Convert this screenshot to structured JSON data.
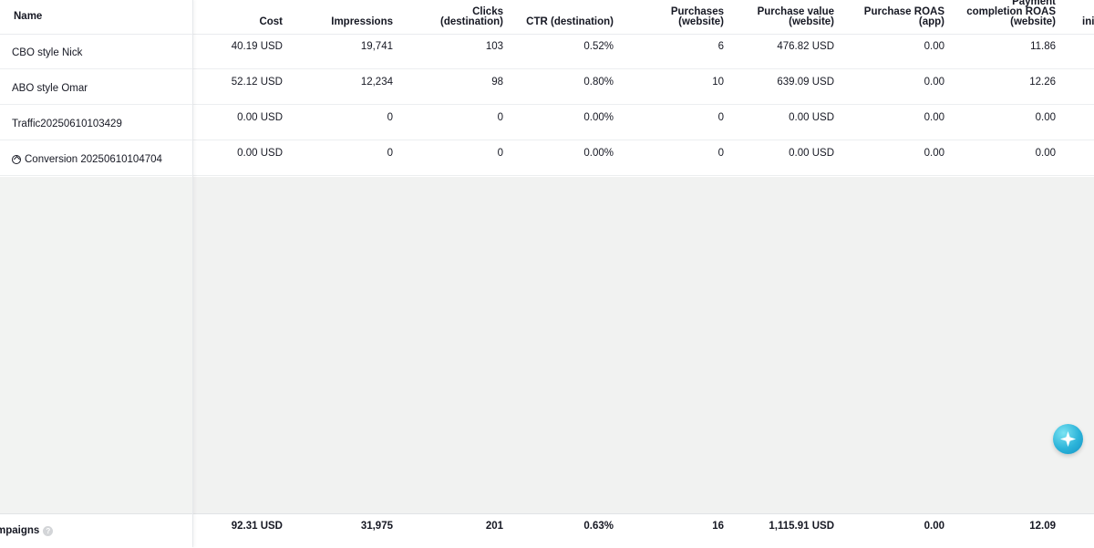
{
  "table": {
    "name_header": "Name",
    "headers": {
      "cost": "Cost",
      "impressions": "Impressions",
      "clicks": "Clicks (destination)",
      "ctr": "CTR (destination)",
      "purchases": "Purchases (website)",
      "purchase_value": "Purchase value (website)",
      "purchase_roas_app": "Purchase ROAS (app)",
      "payment_roas": "Payment completion ROAS (website)",
      "next_partial": "ini"
    },
    "rows": [
      {
        "name": "CBO style Nick",
        "cost": "40.19 USD",
        "impressions": "19,741",
        "clicks": "103",
        "ctr": "0.52%",
        "purchases": "6",
        "purchase_value": "476.82 USD",
        "purchase_roas_app": "0.00",
        "payment_roas": "11.86"
      },
      {
        "name": "ABO style Omar",
        "cost": "52.12 USD",
        "impressions": "12,234",
        "clicks": "98",
        "ctr": "0.80%",
        "purchases": "10",
        "purchase_value": "639.09 USD",
        "purchase_roas_app": "0.00",
        "payment_roas": "12.26"
      },
      {
        "name": "Traffic20250610103429",
        "cost": "0.00 USD",
        "impressions": "0",
        "clicks": "0",
        "ctr": "0.00%",
        "purchases": "0",
        "purchase_value": "0.00 USD",
        "purchase_roas_app": "0.00",
        "payment_roas": "0.00"
      },
      {
        "name": "Conversion 20250610104704",
        "cost": "0.00 USD",
        "impressions": "0",
        "clicks": "0",
        "ctr": "0.00%",
        "purchases": "0",
        "purchase_value": "0.00 USD",
        "purchase_roas_app": "0.00",
        "payment_roas": "0.00",
        "icon": "conversion-icon"
      }
    ],
    "totals": {
      "label": "mpaigns",
      "cost": "92.31 USD",
      "impressions": "31,975",
      "clicks": "201",
      "ctr": "0.63%",
      "purchases": "16",
      "purchase_value": "1,115.91 USD",
      "purchase_roas_app": "0.00",
      "payment_roas": "12.09"
    }
  },
  "fab": {
    "icon": "sparkle-assistant-icon",
    "color": "#2bb3d9"
  }
}
